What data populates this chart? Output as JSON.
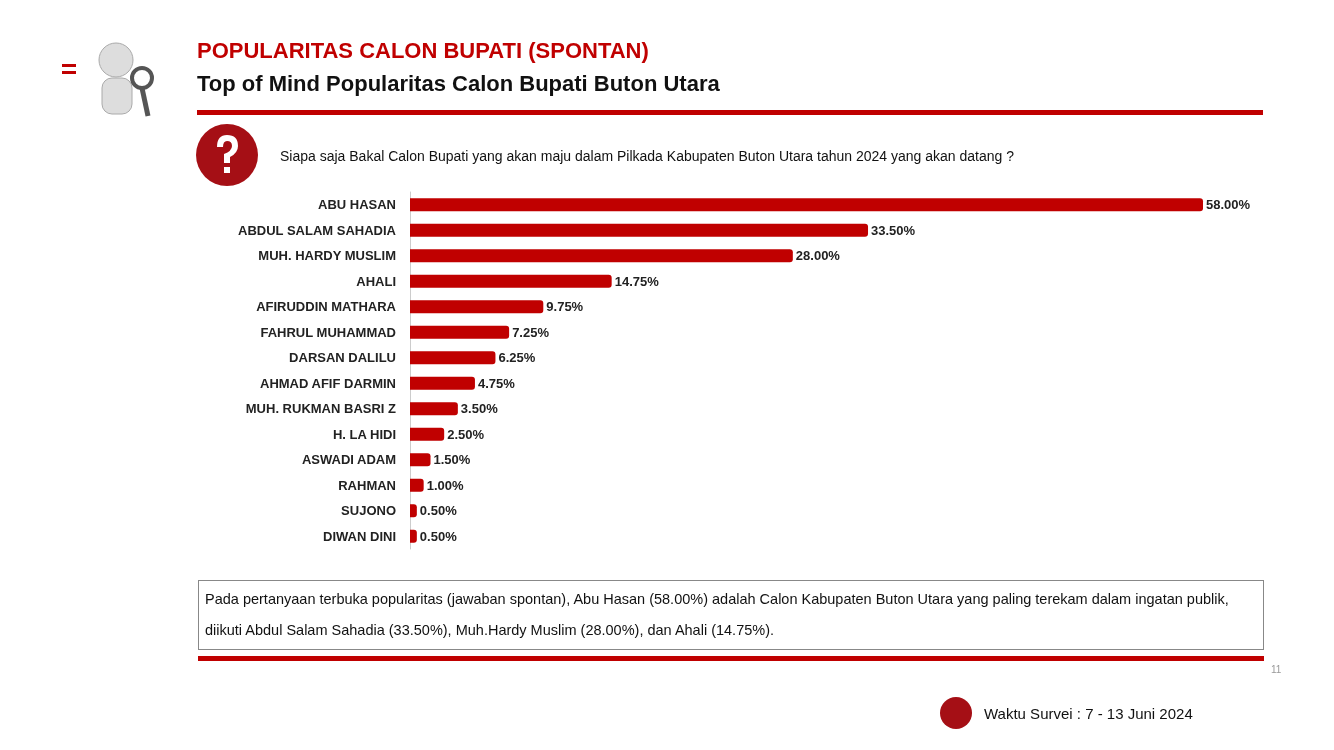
{
  "chart_data": {
    "type": "bar",
    "orientation": "horizontal",
    "title": "POPULARITAS CALON BUPATI (SPONTAN)",
    "subtitle": "Top of Mind Popularitas Calon Bupati Buton Utara",
    "categories": [
      "ABU HASAN",
      "ABDUL SALAM SAHADIA",
      "MUH. HARDY MUSLIM",
      "AHALI",
      "AFIRUDDIN MATHARA",
      "FAHRUL MUHAMMAD",
      "DARSAN DALILU",
      "AHMAD AFIF DARMIN",
      "MUH. RUKMAN BASRI Z",
      "H. LA HIDI",
      "ASWADI ADAM",
      "RAHMAN",
      "SUJONO",
      "DIWAN DINI"
    ],
    "values": [
      58,
      33.5,
      28,
      14.75,
      9.75,
      7.25,
      6.25,
      4.75,
      3.5,
      2.5,
      1.5,
      1,
      0.5,
      0.5
    ],
    "value_labels": [
      "58.00%",
      "33.50%",
      "28.00%",
      "14.75%",
      "9.75%",
      "7.25%",
      "6.25%",
      "4.75%",
      "3.50%",
      "2.50%",
      "1.50%",
      "1.00%",
      "0.50%",
      "0.50%"
    ],
    "color": "#c00000",
    "annotations": [
      "Siapa saja Bakal Calon Bupati yang akan maju dalam Pilkada Kabupaten Buton Utara  tahun 2024 yang akan datang ?",
      "Pada pertanyaan terbuka popularitas (jawaban spontan), Abu Hasan (58.00%) adalah Calon Kabupaten Buton Utara yang paling terekam dalam ingatan publik, diikuti  Abdul Salam Sahadia (33.50%), Muh.Hardy Muslim (28.00%), dan Ahali (14.75%).",
      "Waktu Survei :  7 - 13 Juni 2024",
      "11"
    ]
  }
}
